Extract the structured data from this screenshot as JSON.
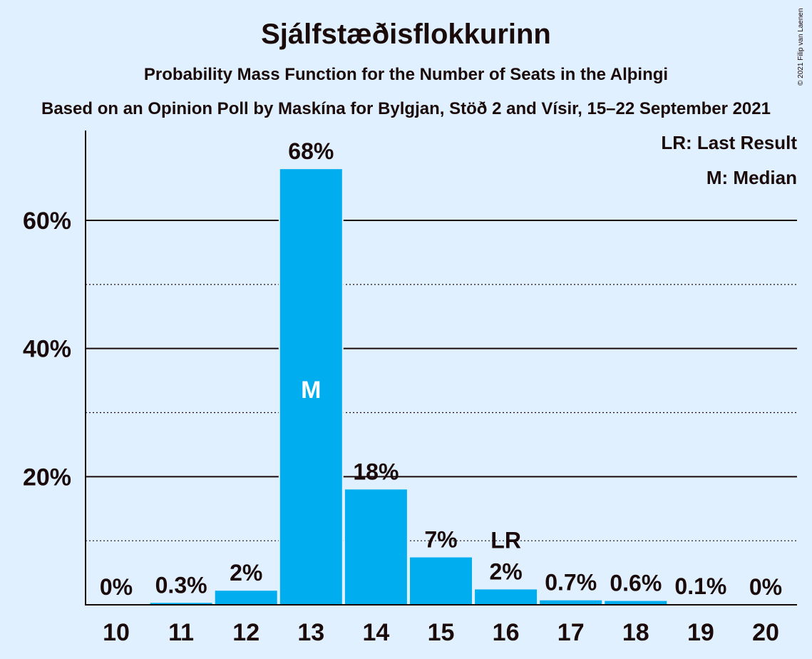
{
  "header": {
    "title": "Sjálfstæðisflokkurinn",
    "subtitle": "Probability Mass Function for the Number of Seats in the Alþingi",
    "poll": "Based on an Opinion Poll by Maskína for Bylgjan, Stöð 2 and Vísir, 15–22 September 2021",
    "copyright": "© 2021 Filip van Laenen"
  },
  "legend": {
    "last_result": "LR: Last Result",
    "median": "M: Median"
  },
  "colors": {
    "bar": "#00adef",
    "background": "#e1f0ff",
    "text": "#1a0a0a"
  },
  "chart_data": {
    "type": "bar",
    "title": "Sjálfstæðisflokkurinn",
    "xlabel": "",
    "ylabel": "",
    "categories": [
      "10",
      "11",
      "12",
      "13",
      "14",
      "15",
      "16",
      "17",
      "18",
      "19",
      "20"
    ],
    "values": [
      0,
      0.3,
      2.2,
      68,
      18,
      7.4,
      2.4,
      0.7,
      0.6,
      0.1,
      0
    ],
    "labels": [
      "0%",
      "0.3%",
      "2%",
      "68%",
      "18%",
      "7%",
      "2%",
      "0.7%",
      "0.6%",
      "0.1%",
      "0%"
    ],
    "ylim": [
      0,
      74
    ],
    "yticks": [
      20,
      40,
      60
    ],
    "ytick_labels": [
      "20%",
      "40%",
      "60%"
    ],
    "minor_yticks": [
      10,
      30,
      50
    ],
    "median_category": "13",
    "median_marker": "M",
    "last_result_category": "16",
    "last_result_marker": "LR",
    "legend_position": "top-right"
  }
}
